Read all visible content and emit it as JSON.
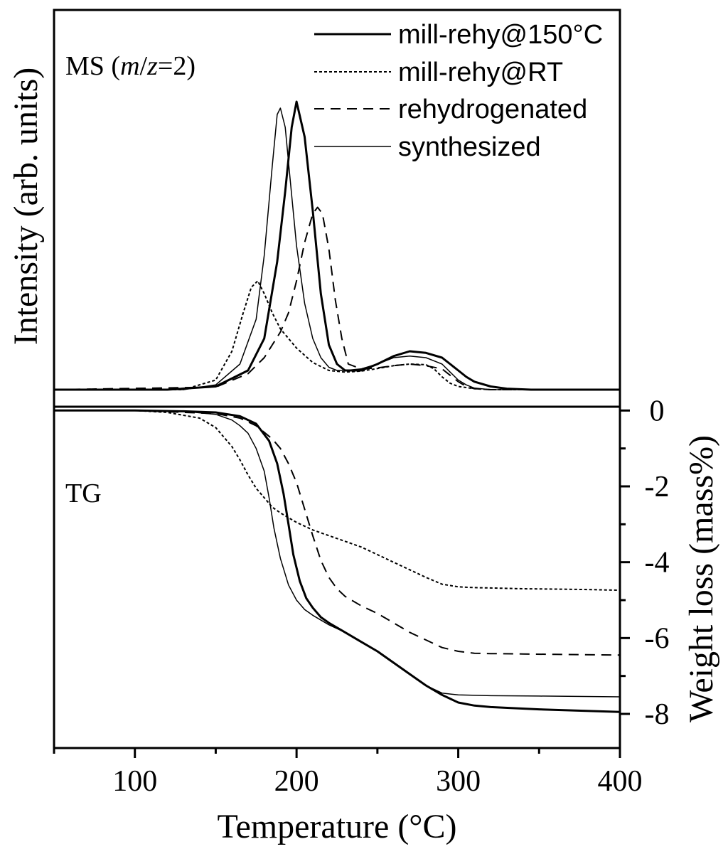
{
  "chart_data": {
    "type": "line",
    "xlabel": "Temperature (°C)",
    "xlim": [
      50,
      400
    ],
    "x_ticks": [
      100,
      200,
      300,
      400
    ],
    "ms_panel": {
      "label_prefix": "MS (",
      "label_italic_m": "m",
      "label_slash": "/",
      "label_italic_z": "z",
      "label_suffix": "=2)",
      "ylabel": "Intensity (arb. units)",
      "ylim": [
        0,
        100
      ],
      "series": [
        {
          "name": "mill-rehy@150°C",
          "style": "solid-thick",
          "x": [
            50,
            120,
            150,
            170,
            180,
            188,
            193,
            197,
            200,
            205,
            210,
            215,
            220,
            225,
            230,
            240,
            250,
            260,
            270,
            280,
            290,
            295,
            300,
            305,
            310,
            320,
            330,
            345,
            360,
            400
          ],
          "y": [
            0,
            0,
            1,
            6,
            16,
            40,
            62,
            82,
            90,
            79,
            56,
            30,
            14,
            8,
            6,
            6,
            8,
            10.5,
            12,
            11.5,
            10,
            8,
            6,
            4,
            2.5,
            1,
            0.3,
            0,
            0,
            0
          ]
        },
        {
          "name": "mill-rehy@RT",
          "style": "dotted",
          "x": [
            50,
            130,
            150,
            160,
            167,
            172,
            176,
            180,
            185,
            190,
            195,
            200,
            210,
            220,
            230,
            240,
            250,
            260,
            270,
            280,
            285,
            290,
            295,
            300,
            310,
            320,
            340,
            400
          ],
          "y": [
            0,
            0,
            3,
            12,
            24,
            32,
            34,
            30,
            24,
            19,
            16,
            13,
            8.5,
            6,
            5.5,
            5.8,
            6.6,
            7.5,
            8,
            7.8,
            6.5,
            4,
            2,
            1,
            0.3,
            0,
            0,
            0
          ]
        },
        {
          "name": "rehydrogenated",
          "style": "dashed",
          "x": [
            50,
            150,
            170,
            180,
            185,
            190,
            195,
            200,
            205,
            210,
            213,
            216,
            220,
            224,
            228,
            232,
            240,
            250,
            260,
            270,
            280,
            290,
            295,
            300,
            305,
            310,
            320,
            340,
            400
          ],
          "y": [
            0,
            0.8,
            5,
            10,
            14,
            18,
            24,
            34,
            46,
            55,
            57,
            55,
            44,
            28,
            16,
            8,
            6.5,
            6.8,
            7.5,
            8,
            7.5,
            6.5,
            4.5,
            2.5,
            1,
            0.3,
            0,
            0,
            0
          ]
        },
        {
          "name": "synthesized",
          "style": "solid-thin",
          "x": [
            50,
            130,
            150,
            165,
            175,
            180,
            185,
            188,
            190,
            193,
            196,
            200,
            205,
            210,
            215,
            220,
            225,
            230,
            240,
            250,
            260,
            270,
            280,
            290,
            295,
            300,
            305,
            310,
            320,
            340,
            400
          ],
          "y": [
            0,
            0,
            1.5,
            8,
            22,
            42,
            70,
            86,
            88,
            82,
            66,
            45,
            27,
            16,
            10,
            7,
            6,
            6,
            6.5,
            8,
            10,
            10.5,
            10,
            8,
            5.5,
            3,
            1.5,
            0.5,
            0,
            0,
            0
          ]
        }
      ]
    },
    "tg_panel": {
      "label": "TG",
      "ylabel": "Weight loss (mass%)",
      "ylim": [
        -8.9,
        0.1
      ],
      "y_ticks": [
        0,
        -2,
        -4,
        -6,
        -8
      ],
      "y_tick_labels": [
        "0",
        "-2",
        "-4",
        "-6",
        "-8"
      ],
      "series": [
        {
          "name": "mill-rehy@150°C",
          "style": "solid-thick",
          "x": [
            50,
            100,
            130,
            150,
            165,
            175,
            183,
            188,
            192,
            195,
            198,
            202,
            206,
            210,
            215,
            220,
            230,
            240,
            250,
            260,
            270,
            280,
            290,
            300,
            310,
            320,
            350,
            400
          ],
          "y": [
            0,
            0,
            -0.02,
            -0.05,
            -0.15,
            -0.35,
            -0.8,
            -1.4,
            -2.2,
            -3,
            -3.8,
            -4.5,
            -4.95,
            -5.2,
            -5.45,
            -5.6,
            -5.85,
            -6.1,
            -6.35,
            -6.65,
            -6.95,
            -7.25,
            -7.5,
            -7.7,
            -7.78,
            -7.82,
            -7.88,
            -7.95
          ]
        },
        {
          "name": "mill-rehy@RT",
          "style": "dotted",
          "x": [
            50,
            100,
            120,
            140,
            150,
            160,
            165,
            170,
            175,
            180,
            185,
            190,
            200,
            210,
            220,
            230,
            240,
            250,
            260,
            270,
            280,
            290,
            300,
            310,
            320,
            340,
            360,
            380,
            400
          ],
          "y": [
            0,
            0,
            -0.05,
            -0.2,
            -0.45,
            -0.95,
            -1.3,
            -1.7,
            -2.05,
            -2.3,
            -2.55,
            -2.7,
            -2.95,
            -3.15,
            -3.3,
            -3.45,
            -3.6,
            -3.8,
            -4.0,
            -4.2,
            -4.4,
            -4.58,
            -4.65,
            -4.67,
            -4.68,
            -4.7,
            -4.71,
            -4.72,
            -4.74
          ]
        },
        {
          "name": "rehydrogenated",
          "style": "dashed",
          "x": [
            50,
            100,
            150,
            165,
            175,
            185,
            190,
            195,
            200,
            205,
            210,
            215,
            220,
            225,
            230,
            240,
            250,
            260,
            270,
            280,
            290,
            300,
            310,
            320,
            340,
            360,
            400
          ],
          "y": [
            0,
            0,
            -0.08,
            -0.2,
            -0.4,
            -0.75,
            -1.0,
            -1.4,
            -1.9,
            -2.6,
            -3.3,
            -3.95,
            -4.4,
            -4.7,
            -4.9,
            -5.15,
            -5.35,
            -5.6,
            -5.85,
            -6.05,
            -6.25,
            -6.35,
            -6.4,
            -6.41,
            -6.42,
            -6.43,
            -6.45
          ]
        },
        {
          "name": "synthesized",
          "style": "solid-thin",
          "x": [
            50,
            100,
            130,
            150,
            160,
            165,
            170,
            175,
            180,
            183,
            186,
            190,
            195,
            200,
            205,
            210,
            220,
            230,
            240,
            250,
            260,
            270,
            280,
            290,
            300,
            320,
            350,
            400
          ],
          "y": [
            0,
            0,
            -0.02,
            -0.1,
            -0.25,
            -0.4,
            -0.6,
            -1.0,
            -1.6,
            -2.3,
            -3.1,
            -3.9,
            -4.6,
            -5.0,
            -5.25,
            -5.4,
            -5.65,
            -5.85,
            -6.1,
            -6.35,
            -6.65,
            -6.95,
            -7.25,
            -7.45,
            -7.5,
            -7.52,
            -7.53,
            -7.55
          ]
        }
      ]
    },
    "legend": {
      "placement": "top-right",
      "entries": [
        {
          "label": "mill-rehy@150°C",
          "style": "solid-thick"
        },
        {
          "label": "mill-rehy@RT",
          "style": "dotted"
        },
        {
          "label": "rehydrogenated",
          "style": "dashed"
        },
        {
          "label": "synthesized",
          "style": "solid-thin"
        }
      ]
    }
  }
}
